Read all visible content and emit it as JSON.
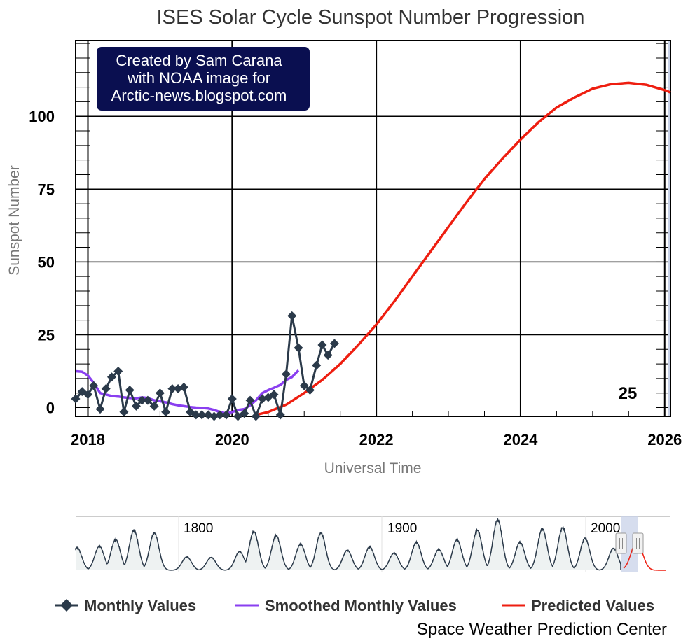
{
  "chart_data": {
    "type": "line",
    "title": "ISES Solar Cycle Sunspot Number Progression",
    "xlabel": "Universal Time",
    "ylabel": "Sunspot Number",
    "xlim": [
      2017.83,
      2026.08
    ],
    "ylim": [
      -3,
      126
    ],
    "x_ticks": [
      {
        "value": 2018,
        "label": "2018"
      },
      {
        "value": 2020,
        "label": "2020"
      },
      {
        "value": 2022,
        "label": "2022"
      },
      {
        "value": 2024,
        "label": "2024"
      },
      {
        "value": 2026,
        "label": "2026"
      }
    ],
    "y_ticks": [
      {
        "value": 0,
        "label": "0"
      },
      {
        "value": 25,
        "label": "25"
      },
      {
        "value": 50,
        "label": "50"
      },
      {
        "value": 75,
        "label": "75"
      },
      {
        "value": 100,
        "label": "100"
      }
    ],
    "cycle_label": "25",
    "series": [
      {
        "name": "Monthly Values",
        "color": "#2b3a4a",
        "x": [
          2017.83,
          2017.92,
          2018.0,
          2018.08,
          2018.17,
          2018.25,
          2018.33,
          2018.42,
          2018.5,
          2018.58,
          2018.67,
          2018.75,
          2018.83,
          2018.92,
          2019.0,
          2019.08,
          2019.17,
          2019.25,
          2019.33,
          2019.42,
          2019.5,
          2019.58,
          2019.67,
          2019.75,
          2019.83,
          2019.92,
          2020.0,
          2020.08,
          2020.17,
          2020.25,
          2020.33,
          2020.42,
          2020.5,
          2020.58,
          2020.67,
          2020.75,
          2020.83,
          2020.92,
          2021.0,
          2021.08,
          2021.17,
          2021.25,
          2021.33,
          2021.42
        ],
        "values": [
          3.0,
          5.5,
          4.5,
          7.5,
          -0.5,
          6.5,
          10.5,
          12.5,
          -1.5,
          6.0,
          0.5,
          2.5,
          2.5,
          0.5,
          5.0,
          -1.5,
          6.5,
          6.5,
          7.0,
          -1.5,
          -2.5,
          -2.5,
          -2.5,
          -3.0,
          -2.5,
          -2.5,
          3.0,
          -3.0,
          -2.0,
          2.5,
          -3.0,
          3.0,
          3.5,
          4.5,
          -2.5,
          11.5,
          31.5,
          20.5,
          7.5,
          6.0,
          14.5,
          21.5,
          18.0,
          22.0
        ]
      },
      {
        "name": "Smoothed Monthly Values",
        "color": "#8a3ff0",
        "x": [
          2017.83,
          2017.92,
          2018.0,
          2018.08,
          2018.17,
          2018.25,
          2018.33,
          2018.42,
          2018.5,
          2018.58,
          2018.67,
          2018.75,
          2018.83,
          2018.92,
          2019.0,
          2019.08,
          2019.17,
          2019.25,
          2019.33,
          2019.42,
          2019.5,
          2019.58,
          2019.67,
          2019.75,
          2019.83,
          2019.92,
          2020.0,
          2020.08,
          2020.17,
          2020.25,
          2020.33,
          2020.42,
          2020.5,
          2020.58,
          2020.67,
          2020.75,
          2020.83,
          2020.92
        ],
        "values": [
          12.5,
          12.3,
          11.0,
          8.5,
          5.0,
          4.5,
          4.0,
          3.8,
          3.5,
          3.3,
          3.2,
          3.5,
          3.3,
          2.5,
          2.2,
          1.8,
          1.2,
          0.8,
          0.5,
          0.2,
          0.0,
          -0.1,
          -0.3,
          -0.8,
          -1.5,
          -2.0,
          -1.5,
          -0.8,
          -0.5,
          0.8,
          2.5,
          5.0,
          6.0,
          6.8,
          7.8,
          9.5,
          10.5,
          12.8
        ]
      },
      {
        "name": "Predicted Values",
        "color": "#ee1e10",
        "x": [
          2020.33,
          2020.5,
          2020.75,
          2021.0,
          2021.25,
          2021.5,
          2021.75,
          2022.0,
          2022.25,
          2022.5,
          2022.75,
          2023.0,
          2023.25,
          2023.5,
          2023.75,
          2024.0,
          2024.25,
          2024.5,
          2024.75,
          2025.0,
          2025.25,
          2025.5,
          2025.75,
          2026.0,
          2026.08
        ],
        "values": [
          -2.5,
          -1.5,
          1.0,
          5.0,
          9.5,
          15.0,
          21.5,
          28.5,
          36.5,
          45.0,
          53.5,
          62.0,
          70.5,
          78.5,
          85.5,
          92.0,
          98.0,
          103.0,
          106.5,
          109.5,
          111.0,
          111.5,
          110.8,
          109.0,
          108.2
        ]
      }
    ]
  },
  "credit": {
    "line1": "Created by Sam Carana",
    "line2": "with NOAA image for",
    "line3": "Arctic-news.blogspot.com"
  },
  "navigator": {
    "labels": [
      "1800",
      "1900",
      "2000"
    ],
    "history_color": "#2b3a4a",
    "prediction_color": "#ee1e10",
    "selection_color": "#c8d2e8"
  },
  "legend": {
    "items": [
      {
        "label": "Monthly Values",
        "color": "#2b3a4a"
      },
      {
        "label": "Smoothed Monthly Values",
        "color": "#8a3ff0"
      },
      {
        "label": "Predicted Values",
        "color": "#ee1e10"
      }
    ]
  },
  "source": "Space Weather Prediction Center",
  "colors": {
    "grid": "#000000",
    "credit_box": "#0a0f50"
  }
}
